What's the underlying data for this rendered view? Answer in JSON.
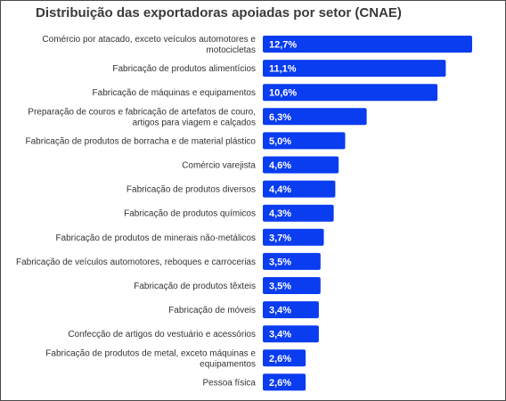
{
  "chart_data": {
    "type": "bar",
    "orientation": "horizontal",
    "title": "Distribuição das exportadoras apoiadas por setor (CNAE)",
    "categories": [
      [
        "Comércio por atacado, exceto veículos automotores e",
        "motocicletas"
      ],
      [
        "Fabricação de produtos alimentícios"
      ],
      [
        "Fabricação de máquinas e equipamentos"
      ],
      [
        "Preparação de couros e fabricação de artefatos de couro,",
        "artigos para viagem e calçados"
      ],
      [
        "Fabricação de produtos de borracha e de material plástico"
      ],
      [
        "Comércio varejista"
      ],
      [
        "Fabricação de produtos diversos"
      ],
      [
        "Fabricação de produtos químicos"
      ],
      [
        "Fabricação de produtos de minerais não-metálicos"
      ],
      [
        "Fabricação de veículos automotores, reboques e carrocerias"
      ],
      [
        "Fabricação de produtos têxteis"
      ],
      [
        "Fabricação de móveis"
      ],
      [
        "Confecção de artigos do vestuário e acessórios"
      ],
      [
        "Fabricação de produtos de metal, exceto máquinas e",
        "equipamentos"
      ],
      [
        "Pessoa física"
      ]
    ],
    "values": [
      12.7,
      11.1,
      10.6,
      6.3,
      5.0,
      4.6,
      4.4,
      4.3,
      3.7,
      3.5,
      3.5,
      3.4,
      3.4,
      2.6,
      2.6
    ],
    "value_labels": [
      "12,7%",
      "11,1%",
      "10,6%",
      "6,3%",
      "5,0%",
      "4,6%",
      "4,4%",
      "4,3%",
      "3,7%",
      "3,5%",
      "3,5%",
      "3,4%",
      "3,4%",
      "2,6%",
      "2,6%"
    ],
    "unit": "%",
    "xlim": [
      0,
      12.7
    ],
    "bar_color": "#0a3cf0",
    "grid": false,
    "legend": "none"
  }
}
